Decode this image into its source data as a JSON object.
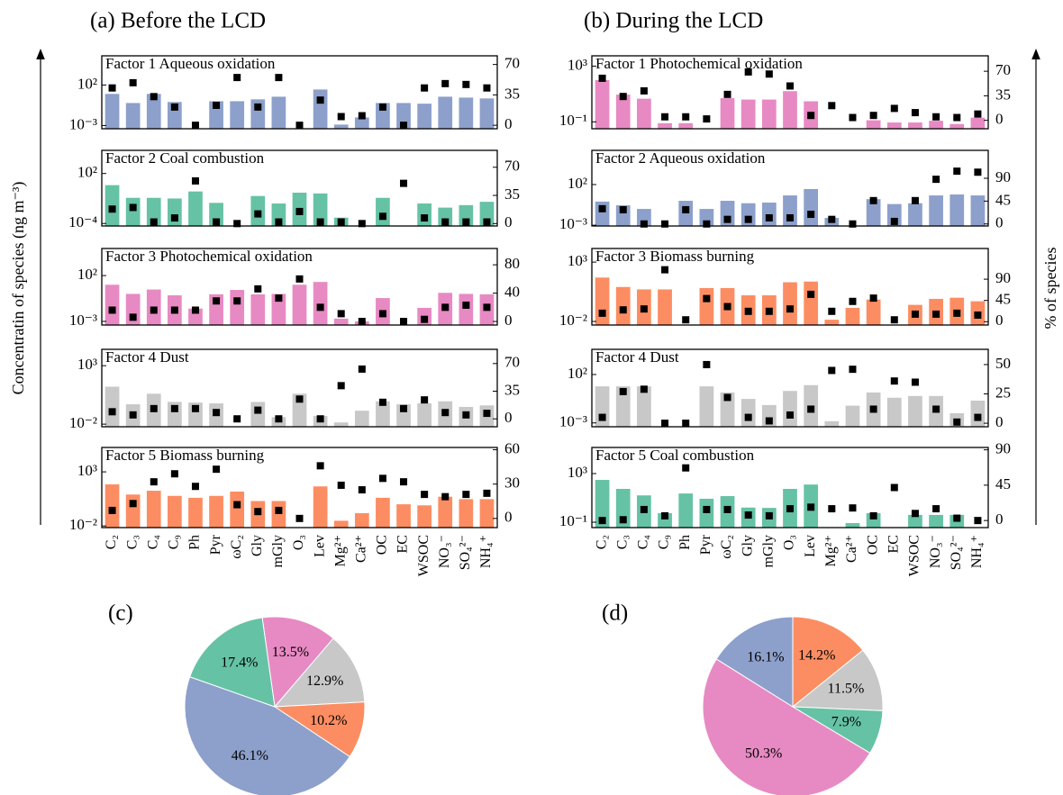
{
  "headings": [
    {
      "text": "(a) Before the LCD",
      "color": "#000000"
    },
    {
      "text": "(b) During the LCD",
      "color": "#0000ee"
    }
  ],
  "y_label": "Concentratin of species (ng m⁻³)",
  "y2_label": "% of species",
  "chart_data": [
    {
      "type": "bar",
      "title": "Factor 1 Aqueous oxidation",
      "log_y": true,
      "ylim": [
        0.0004,
        400000
      ],
      "yticks": [
        {
          "value": 0.001,
          "label": "10⁻³"
        },
        {
          "value": 100,
          "label": "10²"
        }
      ],
      "y2lim": [
        -4,
        80
      ],
      "y2ticks": [
        0,
        35,
        70
      ],
      "series": [
        {
          "color": "#8da0cb",
          "values": [
            8,
            0.6,
            8,
            0.8,
            null,
            1,
            1,
            1.7,
            3.6,
            null,
            28,
            0.0013,
            0.01,
            0.6,
            0.6,
            0.5,
            3.6,
            2.8,
            2.2
          ]
        },
        {
          "color": "#000000",
          "marker": "square",
          "axis": "y2",
          "values": [
            43,
            49,
            33,
            21,
            0,
            23,
            55,
            21,
            55,
            0,
            29,
            10,
            11,
            21,
            0,
            43,
            48,
            47,
            43
          ]
        }
      ]
    },
    {
      "type": "bar",
      "title": "Factor 2 Coal combustion",
      "log_y": true,
      "ylim": [
        5e-05,
        60000
      ],
      "yticks": [
        {
          "value": 0.0001,
          "label": "10⁻⁴"
        },
        {
          "value": 100,
          "label": "10²"
        }
      ],
      "y2lim": [
        -3,
        91
      ],
      "y2ticks": [
        0,
        35,
        70
      ],
      "series": [
        {
          "color": "#66c2a5",
          "values": [
            4,
            0.12,
            0.12,
            0.1,
            0.7,
            0.03,
            null,
            0.2,
            0.025,
            0.5,
            0.4,
            0.0005,
            null,
            0.12,
            null,
            0.025,
            0.008,
            0.016,
            0.04
          ]
        },
        {
          "color": "#000000",
          "marker": "square",
          "axis": "y2",
          "values": [
            18,
            20,
            2,
            7,
            53,
            2,
            0,
            12,
            2,
            15,
            2,
            2,
            0,
            9,
            50,
            7,
            2,
            2,
            2
          ]
        }
      ]
    },
    {
      "type": "bar",
      "title": "Factor 3 Photochemical oxidation",
      "log_y": true,
      "ylim": [
        0.0004,
        90000
      ],
      "yticks": [
        {
          "value": 0.001,
          "label": "10⁻³"
        },
        {
          "value": 100,
          "label": "10²"
        }
      ],
      "y2lim": [
        -5,
        103
      ],
      "y2ticks": [
        0,
        40,
        80
      ],
      "series": [
        {
          "color": "#e78ac3",
          "values": [
            10,
            1,
            3,
            0.7,
            0.025,
            0.9,
            2.7,
            0.9,
            1,
            10,
            20,
            0.002,
            0.001,
            0.35,
            null,
            0.03,
            1.3,
            1,
            0.9
          ]
        },
        {
          "color": "#000000",
          "marker": "square",
          "axis": "y2",
          "values": [
            16,
            6,
            16,
            16,
            16,
            29,
            29,
            46,
            33,
            60,
            20,
            11,
            0,
            11,
            0,
            3,
            20,
            23,
            20
          ]
        }
      ]
    },
    {
      "type": "bar",
      "title": "Factor 4 Dust",
      "log_y": true,
      "ylim": [
        0.006,
        25000
      ],
      "yticks": [
        {
          "value": 0.01,
          "label": "10⁻²"
        },
        {
          "value": 1000,
          "label": "10³"
        }
      ],
      "y2lim": [
        -10,
        88
      ],
      "y2ticks": [
        0,
        35,
        70
      ],
      "series": [
        {
          "color": "#c8c8c8",
          "values": [
            16,
            0.5,
            4,
            0.8,
            0.7,
            0.6,
            null,
            0.8,
            0.04,
            4,
            0.05,
            0.014,
            0.14,
            0.9,
            0.5,
            0.6,
            0.9,
            0.3,
            0.4
          ]
        },
        {
          "color": "#000000",
          "marker": "square",
          "axis": "y2",
          "values": [
            9,
            5,
            13,
            13,
            13,
            8,
            0,
            11,
            0,
            25,
            0,
            42,
            63,
            21,
            13,
            24,
            8,
            5,
            7
          ]
        }
      ]
    },
    {
      "type": "bar",
      "title": "Factor 5 Biomass burning",
      "log_y": true,
      "ylim": [
        0.007,
        180000
      ],
      "yticks": [
        {
          "value": 0.01,
          "label": "10⁻²"
        },
        {
          "value": 1000,
          "label": "10³"
        }
      ],
      "y2lim": [
        -8,
        62
      ],
      "y2ticks": [
        0,
        30,
        60
      ],
      "categories": [
        "C₂",
        "C₃",
        "C₄",
        "C₉",
        "Ph",
        "Pyr",
        "ωC₂",
        "Gly",
        "mGly",
        "O₃",
        "Lev",
        "Mg²⁺",
        "Ca²⁺",
        "OC",
        "EC",
        "WSOC",
        "NO₃⁻",
        "SO₄²⁻",
        "NH₄⁺"
      ],
      "series": [
        {
          "color": "#fc8d62",
          "values": [
            70,
            8,
            18,
            6,
            4,
            6,
            15,
            2,
            2,
            null,
            45,
            0.03,
            0.15,
            4,
            1,
            0.8,
            5,
            3,
            3
          ]
        },
        {
          "color": "#000000",
          "marker": "square",
          "axis": "y2",
          "values": [
            7,
            13,
            32,
            39,
            28,
            43,
            12,
            6,
            7,
            0,
            46,
            29,
            25,
            35,
            32,
            21,
            19,
            21,
            22
          ]
        }
      ]
    },
    {
      "type": "bar",
      "title": "Factor 1 Photochemical oxidation",
      "log_y": true,
      "ylim": [
        0.032,
        5500
      ],
      "yticks": [
        {
          "value": 0.1,
          "label": "10⁻¹"
        },
        {
          "value": 1000,
          "label": "10³"
        }
      ],
      "y2lim": [
        -12,
        92
      ],
      "y2ticks": [
        0,
        35,
        70
      ],
      "series": [
        {
          "color": "#e78ac3",
          "values": [
            100,
            9,
            4.6,
            0.08,
            0.08,
            null,
            5,
            4,
            4,
            16,
            3,
            null,
            null,
            0.13,
            0.09,
            0.09,
            0.12,
            0.07,
            0.2
          ]
        },
        {
          "color": "#000000",
          "marker": "square",
          "axis": "y2",
          "values": [
            60,
            34,
            42,
            5,
            5,
            2,
            37,
            69,
            66,
            49,
            7,
            21,
            4,
            7,
            17,
            11,
            5,
            4,
            9
          ]
        }
      ]
    },
    {
      "type": "bar",
      "title": "Factor 2 Aqueous oxidation",
      "log_y": true,
      "ylim": [
        0.0008,
        1600000
      ],
      "yticks": [
        {
          "value": 0.001,
          "label": "10⁻³"
        },
        {
          "value": 100,
          "label": "10²"
        }
      ],
      "y2lim": [
        -4,
        145
      ],
      "y2ticks": [
        0,
        45,
        90
      ],
      "series": [
        {
          "color": "#8da0cb",
          "values": [
            0.8,
            0.28,
            0.1,
            null,
            1,
            0.1,
            1,
            0.5,
            0.6,
            4.6,
            28,
            0.008,
            null,
            1.6,
            0.4,
            0.5,
            4.6,
            6,
            4.6
          ]
        },
        {
          "color": "#000000",
          "marker": "square",
          "axis": "y2",
          "values": [
            30,
            28,
            0,
            0,
            28,
            0,
            9,
            9,
            12,
            12,
            19,
            9,
            0,
            46,
            5,
            46,
            88,
            104,
            102
          ]
        }
      ]
    },
    {
      "type": "bar",
      "title": "Factor 3 Biomass burning",
      "log_y": true,
      "ylim": [
        0.005,
        14000
      ],
      "yticks": [
        {
          "value": 0.01,
          "label": "10⁻²"
        },
        {
          "value": 1000,
          "label": "10³"
        }
      ],
      "y2lim": [
        -7,
        155
      ],
      "y2ticks": [
        0,
        45,
        90
      ],
      "series": [
        {
          "color": "#fc8d62",
          "values": [
            50,
            8,
            5,
            5,
            null,
            6.5,
            6.5,
            1.6,
            1.6,
            20,
            23,
            0.014,
            0.14,
            0.7,
            null,
            0.25,
            0.8,
            1,
            0.5
          ]
        },
        {
          "color": "#000000",
          "marker": "square",
          "axis": "y2",
          "values": [
            18,
            25,
            27,
            110,
            4,
            49,
            32,
            22,
            22,
            27,
            58,
            22,
            43,
            50,
            4,
            16,
            16,
            18,
            14
          ]
        }
      ]
    },
    {
      "type": "bar",
      "title": "Factor 4 Dust",
      "log_y": true,
      "ylim": [
        0.0004,
        40000
      ],
      "yticks": [
        {
          "value": 0.001,
          "label": "10⁻³"
        },
        {
          "value": 100,
          "label": "10²"
        }
      ],
      "y2lim": [
        -3,
        63
      ],
      "y2ticks": [
        0,
        25,
        50
      ],
      "series": [
        {
          "color": "#c8c8c8",
          "values": [
            6,
            6,
            6,
            null,
            null,
            6,
            1.4,
            0.3,
            0.07,
            2,
            8,
            0.0015,
            0.06,
            1.4,
            0.4,
            0.6,
            0.6,
            0.01,
            0.2
          ]
        },
        {
          "color": "#000000",
          "marker": "square",
          "axis": "y2",
          "values": [
            5,
            27,
            29,
            0,
            0,
            50,
            22,
            5,
            2,
            7,
            12,
            45,
            46,
            12,
            36,
            35,
            12,
            1,
            5
          ]
        }
      ]
    },
    {
      "type": "bar",
      "title": "Factor 5 Coal combustion",
      "log_y": true,
      "ylim": [
        0.036,
        140000
      ],
      "yticks": [
        {
          "value": 0.1,
          "label": "10⁻¹"
        },
        {
          "value": 1000,
          "label": "10³"
        }
      ],
      "y2lim": [
        -9,
        93
      ],
      "y2ticks": [
        0,
        45,
        90
      ],
      "categories": [
        "C₂",
        "C₃",
        "C₄",
        "C₉",
        "Ph",
        "Pyr",
        "ωC₂",
        "Gly",
        "mGly",
        "O₃",
        "Lev",
        "Mg²⁺",
        "Ca²⁺",
        "OC",
        "EC",
        "WSOC",
        "NO₃⁻",
        "SO₄²⁻",
        "NH₄⁺"
      ],
      "series": [
        {
          "color": "#66c2a5",
          "values": [
            300,
            55,
            16,
            0.55,
            23,
            8.5,
            14,
            1.6,
            1.5,
            55,
            125,
            null,
            0.085,
            0.55,
            null,
            0.4,
            0.4,
            0.4,
            null
          ]
        },
        {
          "color": "#000000",
          "marker": "square",
          "axis": "y2",
          "values": [
            0,
            1,
            14,
            6,
            67,
            14,
            14,
            7,
            6,
            15,
            17,
            15,
            16,
            6,
            42,
            9,
            15,
            3,
            0
          ]
        }
      ]
    },
    {
      "type": "pie",
      "title": "(c)",
      "title_color": "#000000",
      "values": [
        13.5,
        12.9,
        10.2,
        46.1,
        17.4
      ],
      "value_labels": [
        "13.5%",
        "12.9%",
        "10.2%",
        "46.1%",
        "17.4%"
      ],
      "colors": [
        "#e78ac3",
        "#c8c8c8",
        "#fc8d62",
        "#8da0cb",
        "#66c2a5"
      ]
    },
    {
      "type": "pie",
      "title": "(d)",
      "title_color": "#0000ee",
      "values": [
        14.2,
        11.5,
        7.9,
        50.3,
        16.1
      ],
      "value_labels": [
        "14.2%",
        "11.5%",
        "7.9%",
        "50.3%",
        "16.1%"
      ],
      "colors": [
        "#fc8d62",
        "#c8c8c8",
        "#66c2a5",
        "#e78ac3",
        "#8da0cb"
      ]
    }
  ]
}
